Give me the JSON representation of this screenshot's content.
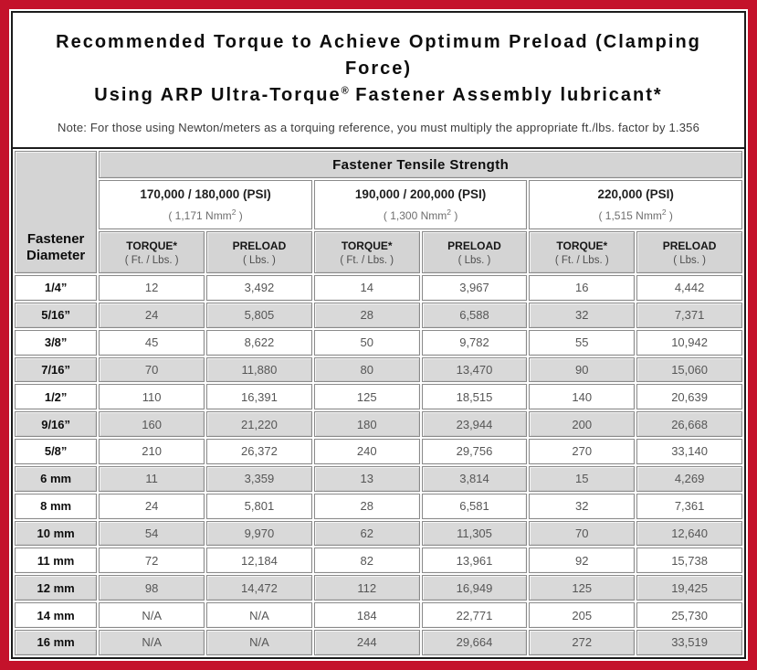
{
  "colors": {
    "accent_red": "#c4122b",
    "header_gray": "#d4d4d4",
    "row_alt_gray": "#d9d9d9"
  },
  "title": {
    "line1": "Recommended Torque to Achieve Optimum Preload (Clamping Force)",
    "line2_prefix": "Using ARP Ultra-Torque",
    "line2_sup": "®",
    "line2_suffix": " Fastener Assembly lubricant*"
  },
  "note": "Note: For those using Newton/meters as a torquing reference, you must multiply the appropriate ft./lbs. factor by 1.356",
  "table": {
    "main_header": "Fastener Tensile Strength",
    "diameter_header": {
      "line1": "Fastener",
      "line2": "Diameter"
    },
    "strength_groups": [
      {
        "psi": "170,000 / 180,000 (PSI)",
        "nmm_prefix": "( 1,171 Nmm",
        "nmm_sup": "2",
        "nmm_suffix": " )"
      },
      {
        "psi": "190,000 / 200,000 (PSI)",
        "nmm_prefix": "( 1,300 Nmm",
        "nmm_sup": "2",
        "nmm_suffix": " )"
      },
      {
        "psi": "220,000 (PSI)",
        "nmm_prefix": "( 1,515 Nmm",
        "nmm_sup": "2",
        "nmm_suffix": " )"
      }
    ],
    "sub_headers": {
      "torque": "TORQUE*",
      "torque_unit": "( Ft. / Lbs. )",
      "preload": "PRELOAD",
      "preload_unit": "( Lbs. )"
    },
    "rows": [
      {
        "diameter": "1/4”",
        "values": [
          "12",
          "3,492",
          "14",
          "3,967",
          "16",
          "4,442"
        ]
      },
      {
        "diameter": "5/16”",
        "values": [
          "24",
          "5,805",
          "28",
          "6,588",
          "32",
          "7,371"
        ]
      },
      {
        "diameter": "3/8”",
        "values": [
          "45",
          "8,622",
          "50",
          "9,782",
          "55",
          "10,942"
        ]
      },
      {
        "diameter": "7/16”",
        "values": [
          "70",
          "11,880",
          "80",
          "13,470",
          "90",
          "15,060"
        ]
      },
      {
        "diameter": "1/2”",
        "values": [
          "110",
          "16,391",
          "125",
          "18,515",
          "140",
          "20,639"
        ]
      },
      {
        "diameter": "9/16”",
        "values": [
          "160",
          "21,220",
          "180",
          "23,944",
          "200",
          "26,668"
        ]
      },
      {
        "diameter": "5/8”",
        "values": [
          "210",
          "26,372",
          "240",
          "29,756",
          "270",
          "33,140"
        ]
      },
      {
        "diameter": "6 mm",
        "values": [
          "11",
          "3,359",
          "13",
          "3,814",
          "15",
          "4,269"
        ]
      },
      {
        "diameter": "8 mm",
        "values": [
          "24",
          "5,801",
          "28",
          "6,581",
          "32",
          "7,361"
        ]
      },
      {
        "diameter": "10 mm",
        "values": [
          "54",
          "9,970",
          "62",
          "11,305",
          "70",
          "12,640"
        ]
      },
      {
        "diameter": "11 mm",
        "values": [
          "72",
          "12,184",
          "82",
          "13,961",
          "92",
          "15,738"
        ]
      },
      {
        "diameter": "12 mm",
        "values": [
          "98",
          "14,472",
          "112",
          "16,949",
          "125",
          "19,425"
        ]
      },
      {
        "diameter": "14 mm",
        "values": [
          "N/A",
          "N/A",
          "184",
          "22,771",
          "205",
          "25,730"
        ]
      },
      {
        "diameter": "16 mm",
        "values": [
          "N/A",
          "N/A",
          "244",
          "29,664",
          "272",
          "33,519"
        ]
      }
    ]
  }
}
